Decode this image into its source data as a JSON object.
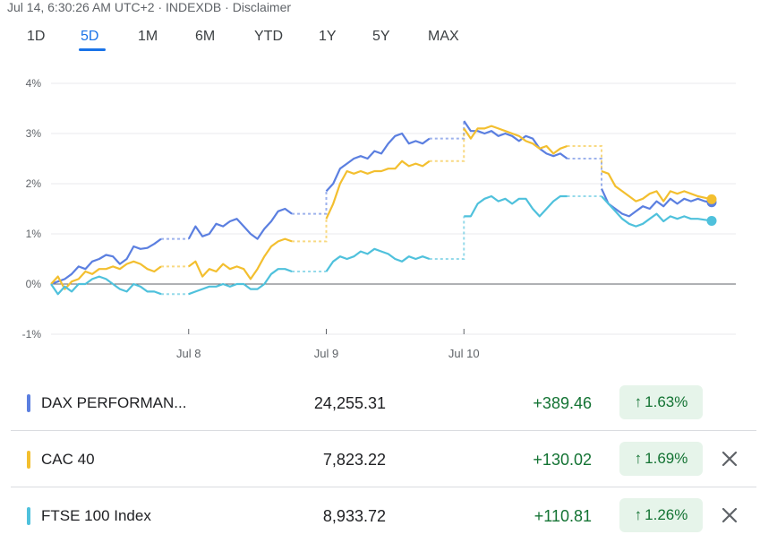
{
  "header": {
    "text": "Jul 14, 6:30:26 AM UTC+2 · INDEXDB · Disclaimer"
  },
  "tabs": [
    {
      "label": "1D",
      "active": false
    },
    {
      "label": "5D",
      "active": true
    },
    {
      "label": "1M",
      "active": false
    },
    {
      "label": "6M",
      "active": false
    },
    {
      "label": "YTD",
      "active": false
    },
    {
      "label": "1Y",
      "active": false
    },
    {
      "label": "5Y",
      "active": false
    },
    {
      "label": "MAX",
      "active": false
    }
  ],
  "rows": [
    {
      "name": "DAX PERFORMAN...",
      "price": "24,255.31",
      "change": "+389.46",
      "pct": "1.63%",
      "color": "#5b7fe0",
      "closable": false
    },
    {
      "name": "CAC 40",
      "price": "7,823.22",
      "change": "+130.02",
      "pct": "1.69%",
      "color": "#f3bf2f",
      "closable": true
    },
    {
      "name": "FTSE 100 Index",
      "price": "8,933.72",
      "change": "+110.81",
      "pct": "1.26%",
      "color": "#4fc1dc",
      "closable": true
    }
  ],
  "chart_data": {
    "type": "line",
    "y_ticks": [
      "4%",
      "3%",
      "2%",
      "1%",
      "0%",
      "-1%"
    ],
    "y_values": [
      4,
      3,
      2,
      1,
      0,
      -1
    ],
    "ylim": [
      -1,
      4
    ],
    "x_labels": [
      "Jul 8",
      "Jul 9",
      "Jul 10"
    ],
    "x_label_positions": [
      0.2,
      0.4,
      0.6
    ],
    "xlim": [
      0,
      1
    ],
    "grid": true,
    "series": [
      {
        "name": "DAX PERFORMAN...",
        "color": "#5b7fe0",
        "segments": [
          {
            "x": [
              0.0,
              0.01,
              0.02,
              0.03,
              0.04,
              0.05,
              0.06,
              0.07,
              0.08,
              0.09,
              0.1,
              0.11,
              0.12,
              0.13,
              0.14,
              0.15,
              0.16
            ],
            "y": [
              0.0,
              0.05,
              0.1,
              0.2,
              0.35,
              0.3,
              0.45,
              0.5,
              0.58,
              0.55,
              0.4,
              0.5,
              0.75,
              0.7,
              0.72,
              0.8,
              0.9
            ]
          },
          {
            "x": [
              0.2,
              0.21,
              0.22,
              0.23,
              0.24,
              0.25,
              0.26,
              0.27,
              0.28,
              0.29,
              0.3,
              0.31,
              0.32,
              0.33,
              0.34,
              0.35
            ],
            "y": [
              0.9,
              1.15,
              0.95,
              1.0,
              1.2,
              1.15,
              1.25,
              1.3,
              1.15,
              1.0,
              0.9,
              1.1,
              1.25,
              1.45,
              1.5,
              1.4
            ]
          },
          {
            "x": [
              0.4,
              0.41,
              0.42,
              0.43,
              0.44,
              0.45,
              0.46,
              0.47,
              0.48,
              0.49,
              0.5,
              0.51,
              0.52,
              0.53,
              0.54,
              0.55
            ],
            "y": [
              1.85,
              2.0,
              2.3,
              2.4,
              2.5,
              2.55,
              2.5,
              2.65,
              2.6,
              2.8,
              2.95,
              3.0,
              2.8,
              2.85,
              2.8,
              2.9
            ]
          },
          {
            "x": [
              0.6,
              0.61,
              0.62,
              0.63,
              0.64,
              0.65,
              0.66,
              0.67,
              0.68,
              0.69,
              0.7,
              0.71,
              0.72,
              0.73,
              0.74,
              0.75
            ],
            "y": [
              3.25,
              3.05,
              3.05,
              3.0,
              3.05,
              2.95,
              3.0,
              2.95,
              2.85,
              2.95,
              2.9,
              2.7,
              2.6,
              2.55,
              2.6,
              2.5
            ]
          },
          {
            "x": [
              0.8,
              0.81,
              0.82,
              0.83,
              0.84,
              0.85,
              0.86,
              0.87,
              0.88,
              0.89,
              0.9,
              0.91,
              0.92,
              0.93,
              0.94,
              0.95,
              0.96
            ],
            "y": [
              1.9,
              1.6,
              1.5,
              1.4,
              1.35,
              1.45,
              1.55,
              1.5,
              1.65,
              1.55,
              1.7,
              1.6,
              1.7,
              1.65,
              1.7,
              1.65,
              1.63
            ]
          }
        ]
      },
      {
        "name": "CAC 40",
        "color": "#f3bf2f",
        "segments": [
          {
            "x": [
              0.0,
              0.01,
              0.02,
              0.03,
              0.04,
              0.05,
              0.06,
              0.07,
              0.08,
              0.09,
              0.1,
              0.11,
              0.12,
              0.13,
              0.14,
              0.15,
              0.16
            ],
            "y": [
              0.0,
              0.15,
              -0.1,
              0.05,
              0.1,
              0.25,
              0.2,
              0.3,
              0.3,
              0.35,
              0.3,
              0.4,
              0.45,
              0.4,
              0.3,
              0.25,
              0.35
            ]
          },
          {
            "x": [
              0.2,
              0.21,
              0.22,
              0.23,
              0.24,
              0.25,
              0.26,
              0.27,
              0.28,
              0.29,
              0.3,
              0.31,
              0.32,
              0.33,
              0.34,
              0.35
            ],
            "y": [
              0.35,
              0.45,
              0.15,
              0.3,
              0.25,
              0.4,
              0.3,
              0.35,
              0.3,
              0.1,
              0.3,
              0.55,
              0.75,
              0.85,
              0.9,
              0.85
            ]
          },
          {
            "x": [
              0.4,
              0.41,
              0.42,
              0.43,
              0.44,
              0.45,
              0.46,
              0.47,
              0.48,
              0.49,
              0.5,
              0.51,
              0.52,
              0.53,
              0.54,
              0.55
            ],
            "y": [
              1.3,
              1.6,
              2.0,
              2.25,
              2.2,
              2.25,
              2.2,
              2.25,
              2.25,
              2.3,
              2.3,
              2.45,
              2.35,
              2.4,
              2.35,
              2.45
            ]
          },
          {
            "x": [
              0.6,
              0.61,
              0.62,
              0.63,
              0.64,
              0.65,
              0.66,
              0.67,
              0.68,
              0.69,
              0.7,
              0.71,
              0.72,
              0.73,
              0.74,
              0.75
            ],
            "y": [
              3.1,
              2.9,
              3.1,
              3.1,
              3.15,
              3.1,
              3.05,
              3.0,
              2.95,
              2.85,
              2.8,
              2.7,
              2.75,
              2.6,
              2.7,
              2.75
            ]
          },
          {
            "x": [
              0.8,
              0.81,
              0.82,
              0.83,
              0.84,
              0.85,
              0.86,
              0.87,
              0.88,
              0.89,
              0.9,
              0.91,
              0.92,
              0.93,
              0.94,
              0.95,
              0.96
            ],
            "y": [
              2.25,
              2.2,
              1.95,
              1.85,
              1.75,
              1.65,
              1.7,
              1.8,
              1.85,
              1.65,
              1.85,
              1.8,
              1.85,
              1.8,
              1.75,
              1.72,
              1.69
            ]
          }
        ]
      },
      {
        "name": "FTSE 100 Index",
        "color": "#4fc1dc",
        "segments": [
          {
            "x": [
              0.0,
              0.01,
              0.02,
              0.03,
              0.04,
              0.05,
              0.06,
              0.07,
              0.08,
              0.09,
              0.1,
              0.11,
              0.12,
              0.13,
              0.14,
              0.15,
              0.16
            ],
            "y": [
              0.0,
              -0.2,
              -0.05,
              -0.15,
              0.0,
              0.0,
              0.1,
              0.15,
              0.1,
              0.0,
              -0.1,
              -0.15,
              0.0,
              -0.05,
              -0.15,
              -0.15,
              -0.2
            ]
          },
          {
            "x": [
              0.2,
              0.21,
              0.22,
              0.23,
              0.24,
              0.25,
              0.26,
              0.27,
              0.28,
              0.29,
              0.3,
              0.31,
              0.32,
              0.33,
              0.34,
              0.35
            ],
            "y": [
              -0.2,
              -0.15,
              -0.1,
              -0.05,
              -0.05,
              0.0,
              -0.05,
              0.0,
              0.0,
              -0.1,
              -0.1,
              0.0,
              0.2,
              0.3,
              0.3,
              0.25
            ]
          },
          {
            "x": [
              0.4,
              0.41,
              0.42,
              0.43,
              0.44,
              0.45,
              0.46,
              0.47,
              0.48,
              0.49,
              0.5,
              0.51,
              0.52,
              0.53,
              0.54,
              0.55
            ],
            "y": [
              0.25,
              0.45,
              0.55,
              0.5,
              0.55,
              0.65,
              0.6,
              0.7,
              0.65,
              0.6,
              0.5,
              0.45,
              0.55,
              0.5,
              0.55,
              0.5
            ]
          },
          {
            "x": [
              0.6,
              0.61,
              0.62,
              0.63,
              0.64,
              0.65,
              0.66,
              0.67,
              0.68,
              0.69,
              0.7,
              0.71,
              0.72,
              0.73,
              0.74,
              0.75
            ],
            "y": [
              1.35,
              1.35,
              1.6,
              1.7,
              1.75,
              1.65,
              1.7,
              1.6,
              1.7,
              1.7,
              1.5,
              1.35,
              1.5,
              1.65,
              1.75,
              1.75
            ]
          },
          {
            "x": [
              0.8,
              0.81,
              0.82,
              0.83,
              0.84,
              0.85,
              0.86,
              0.87,
              0.88,
              0.89,
              0.9,
              0.91,
              0.92,
              0.93,
              0.94,
              0.95,
              0.96
            ],
            "y": [
              1.75,
              1.6,
              1.45,
              1.3,
              1.2,
              1.15,
              1.2,
              1.3,
              1.4,
              1.25,
              1.35,
              1.3,
              1.35,
              1.3,
              1.3,
              1.28,
              1.26
            ]
          }
        ]
      }
    ]
  }
}
